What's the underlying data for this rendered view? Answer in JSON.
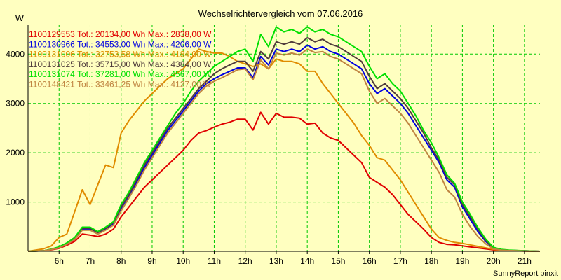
{
  "chart_data": {
    "type": "line",
    "title": "Wechselrichtervergleich vom 07.06.2016",
    "ylabel": "W",
    "xlabel": "",
    "footer": "SunnyReport pinxit",
    "xlim": [
      5,
      21.5
    ],
    "ylim": [
      0,
      4600
    ],
    "x_ticks": [
      6,
      7,
      8,
      9,
      10,
      11,
      12,
      13,
      14,
      15,
      16,
      17,
      18,
      19,
      20,
      21
    ],
    "x_tick_labels": [
      "6h",
      "7h",
      "8h",
      "9h",
      "10h",
      "11h",
      "12h",
      "13h",
      "14h",
      "15h",
      "16h",
      "17h",
      "18h",
      "19h",
      "20h",
      "21h"
    ],
    "y_ticks": [
      1000,
      2000,
      3000,
      4000
    ],
    "y_tick_labels": [
      "1000",
      "2000",
      "3000",
      "4000"
    ],
    "grid": true,
    "legend_position": "top-left",
    "x": [
      5,
      5.5,
      5.75,
      6,
      6.25,
      6.5,
      6.75,
      7,
      7.25,
      7.5,
      7.75,
      8,
      8.25,
      8.5,
      8.75,
      9,
      9.25,
      9.5,
      9.75,
      10,
      10.25,
      10.5,
      10.75,
      11,
      11.25,
      11.5,
      11.75,
      12,
      12.25,
      12.5,
      12.75,
      13,
      13.25,
      13.5,
      13.75,
      14,
      14.25,
      14.5,
      14.75,
      15,
      15.25,
      15.5,
      15.75,
      16,
      16.25,
      16.5,
      16.75,
      17,
      17.25,
      17.5,
      17.75,
      18,
      18.25,
      18.5,
      18.75,
      19,
      19.25,
      19.5,
      19.75,
      20,
      20.25,
      20.5,
      21,
      21.5
    ],
    "series": [
      {
        "name": "1100129553",
        "legend": "1100129553 Tot.: 20134,00 Wh Max.: 2838,00 W",
        "color": "#e00000",
        "values": [
          0,
          10,
          30,
          60,
          120,
          200,
          350,
          330,
          300,
          350,
          450,
          700,
          900,
          1100,
          1300,
          1450,
          1600,
          1750,
          1900,
          2050,
          2250,
          2400,
          2450,
          2520,
          2580,
          2620,
          2680,
          2680,
          2460,
          2820,
          2580,
          2800,
          2720,
          2720,
          2700,
          2580,
          2600,
          2400,
          2300,
          2250,
          2100,
          1950,
          1800,
          1500,
          1400,
          1300,
          1150,
          950,
          750,
          600,
          450,
          280,
          180,
          140,
          130,
          110,
          90,
          70,
          50,
          30,
          20,
          10,
          5,
          0
        ]
      },
      {
        "name": "1100130966",
        "legend": "1100130966 Tot.: 34553,00 Wh Max.: 4206,00 W",
        "color": "#0000e0",
        "values": [
          0,
          10,
          40,
          80,
          150,
          250,
          450,
          450,
          370,
          450,
          550,
          850,
          1100,
          1400,
          1700,
          1950,
          2200,
          2450,
          2650,
          2850,
          3050,
          3250,
          3400,
          3500,
          3580,
          3650,
          3720,
          3720,
          3520,
          3950,
          3780,
          4100,
          4050,
          4100,
          4050,
          4180,
          4100,
          4150,
          4050,
          4000,
          3900,
          3800,
          3700,
          3400,
          3200,
          3300,
          3150,
          3000,
          2800,
          2550,
          2300,
          2050,
          1800,
          1450,
          1300,
          900,
          650,
          400,
          200,
          60,
          30,
          20,
          10,
          0
        ]
      },
      {
        "name": "1100131006",
        "legend": "1100131006 Tot.: 32753,58 Wh Max.: 4184,00 W",
        "color": "#e08c00",
        "values": [
          0,
          50,
          110,
          280,
          350,
          800,
          1250,
          950,
          1350,
          1750,
          1700,
          2400,
          2650,
          2850,
          3050,
          3200,
          3350,
          3500,
          3600,
          3700,
          3900,
          4100,
          4050,
          4020,
          4020,
          3950,
          3850,
          3800,
          3750,
          3800,
          3700,
          3900,
          3850,
          3850,
          3800,
          3650,
          3650,
          3400,
          3200,
          3000,
          2800,
          2600,
          2350,
          2150,
          1900,
          1850,
          1650,
          1450,
          1200,
          950,
          700,
          450,
          280,
          220,
          180,
          160,
          130,
          100,
          70,
          40,
          25,
          15,
          5,
          0
        ]
      },
      {
        "name": "1100131025",
        "legend": "1100131025 Tot.: 35715,00 Wh Max.: 4384,00 W",
        "color": "#503c3c",
        "values": [
          0,
          10,
          40,
          80,
          160,
          260,
          470,
          470,
          380,
          470,
          580,
          900,
          1150,
          1450,
          1750,
          2000,
          2250,
          2500,
          2700,
          2900,
          3100,
          3300,
          3450,
          3600,
          3700,
          3780,
          3850,
          3850,
          3650,
          4050,
          3900,
          4250,
          4200,
          4250,
          4200,
          4330,
          4250,
          4300,
          4200,
          4150,
          4050,
          3950,
          3850,
          3550,
          3300,
          3400,
          3250,
          3100,
          2900,
          2650,
          2400,
          2100,
          1850,
          1500,
          1350,
          950,
          700,
          450,
          220,
          70,
          35,
          20,
          10,
          0
        ]
      },
      {
        "name": "1100131074",
        "legend": "1100131074 Tot.: 37281,00 Wh Max.: 4567,00 W",
        "color": "#00e000",
        "values": [
          0,
          10,
          45,
          90,
          170,
          280,
          490,
          490,
          400,
          490,
          600,
          950,
          1200,
          1500,
          1800,
          2050,
          2300,
          2550,
          2800,
          3000,
          3250,
          3450,
          3600,
          3750,
          3850,
          3950,
          4050,
          4100,
          3850,
          4400,
          4150,
          4550,
          4450,
          4500,
          4420,
          4550,
          4450,
          4500,
          4400,
          4350,
          4250,
          4150,
          4050,
          3750,
          3500,
          3600,
          3400,
          3250,
          3000,
          2750,
          2450,
          2200,
          1900,
          1550,
          1380,
          1000,
          750,
          480,
          250,
          80,
          40,
          25,
          10,
          0
        ]
      },
      {
        "name": "1100148421",
        "legend": "1100148421 Tot.: 33461,25 Wh Max.: 4127,00 W",
        "color": "#c08440",
        "values": [
          0,
          10,
          35,
          70,
          140,
          240,
          430,
          430,
          350,
          430,
          530,
          820,
          1080,
          1350,
          1650,
          1900,
          2150,
          2400,
          2600,
          2800,
          3000,
          3200,
          3350,
          3450,
          3520,
          3600,
          3680,
          3700,
          3480,
          3880,
          3700,
          4020,
          3980,
          4020,
          3980,
          4100,
          4030,
          4050,
          3950,
          3900,
          3800,
          3700,
          3600,
          3250,
          3000,
          3100,
          2950,
          2800,
          2600,
          2350,
          2100,
          1850,
          1600,
          1250,
          1100,
          750,
          500,
          300,
          150,
          50,
          25,
          15,
          5,
          0
        ]
      }
    ]
  }
}
